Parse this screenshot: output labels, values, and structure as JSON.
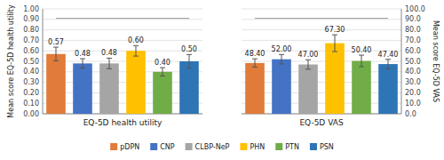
{
  "chart_data": [
    {
      "type": "bar",
      "xlabel": "EQ-5D health utility",
      "ylabel": "Mean score EQ-5D health utility",
      "categories": [
        "pDPN",
        "CNP",
        "CLBP-NeP",
        "PHN",
        "PTN",
        "PSN"
      ],
      "values": [
        0.57,
        0.48,
        0.48,
        0.6,
        0.4,
        0.5
      ],
      "value_labels": [
        "0.57",
        "0.48",
        "0.48",
        "0.60",
        "0.40",
        "0.50"
      ],
      "errors": [
        0.065,
        0.045,
        0.05,
        0.05,
        0.04,
        0.065
      ],
      "colors": [
        "#E07B39",
        "#4472C4",
        "#A5A5A5",
        "#FFC000",
        "#70AD47",
        "#2E75B6"
      ],
      "bracket": 0.91,
      "ylim": [
        0.0,
        1.0
      ],
      "yticks": [
        {
          "value": 0.0,
          "label": "0.00"
        },
        {
          "value": 0.1,
          "label": "0.10"
        },
        {
          "value": 0.2,
          "label": "0.20"
        },
        {
          "value": 0.3,
          "label": "0.30"
        },
        {
          "value": 0.4,
          "label": "0.40"
        },
        {
          "value": 0.5,
          "label": "0.50"
        },
        {
          "value": 0.6,
          "label": "0.60"
        },
        {
          "value": 0.7,
          "label": "0.70"
        },
        {
          "value": 0.8,
          "label": "0.80"
        },
        {
          "value": 0.9,
          "label": "0.90"
        },
        {
          "value": 1.0,
          "label": "1.00"
        }
      ],
      "grid": true,
      "data_labels": true,
      "tick_labels": "y",
      "legend": "bottom"
    },
    {
      "type": "bar",
      "xlabel": "EQ-5D VAS",
      "ylabel": "Mean score EQ-5D VAS",
      "categories": [
        "pDPN",
        "CNP",
        "CLBP-NeP",
        "PHN",
        "PTN",
        "PSN"
      ],
      "values": [
        48.4,
        52.0,
        47.0,
        67.3,
        50.4,
        47.4
      ],
      "value_labels": [
        "48.40",
        "52.00",
        "47.00",
        "67.30",
        "50.40",
        "47.40"
      ],
      "errors": [
        4.0,
        4.5,
        4.5,
        8.0,
        5.5,
        4.5
      ],
      "colors": [
        "#E07B39",
        "#4472C4",
        "#A5A5A5",
        "#FFC000",
        "#70AD47",
        "#2E75B6"
      ],
      "bracket": 91.0,
      "ylim": [
        0.0,
        100.0
      ],
      "yticks": [
        {
          "value": 0.0,
          "label": "0.0"
        },
        {
          "value": 10.0,
          "label": "10.0"
        },
        {
          "value": 20.0,
          "label": "20.0"
        },
        {
          "value": 30.0,
          "label": "30.0"
        },
        {
          "value": 40.0,
          "label": "40.0"
        },
        {
          "value": 50.0,
          "label": "50.0"
        },
        {
          "value": 60.0,
          "label": "60.0"
        },
        {
          "value": 70.0,
          "label": "70.0"
        },
        {
          "value": 80.0,
          "label": "80.0"
        },
        {
          "value": 90.0,
          "label": "90.0"
        },
        {
          "value": 100.0,
          "label": "100.0"
        }
      ],
      "grid": true,
      "data_labels": true,
      "tick_labels": "y"
    }
  ]
}
